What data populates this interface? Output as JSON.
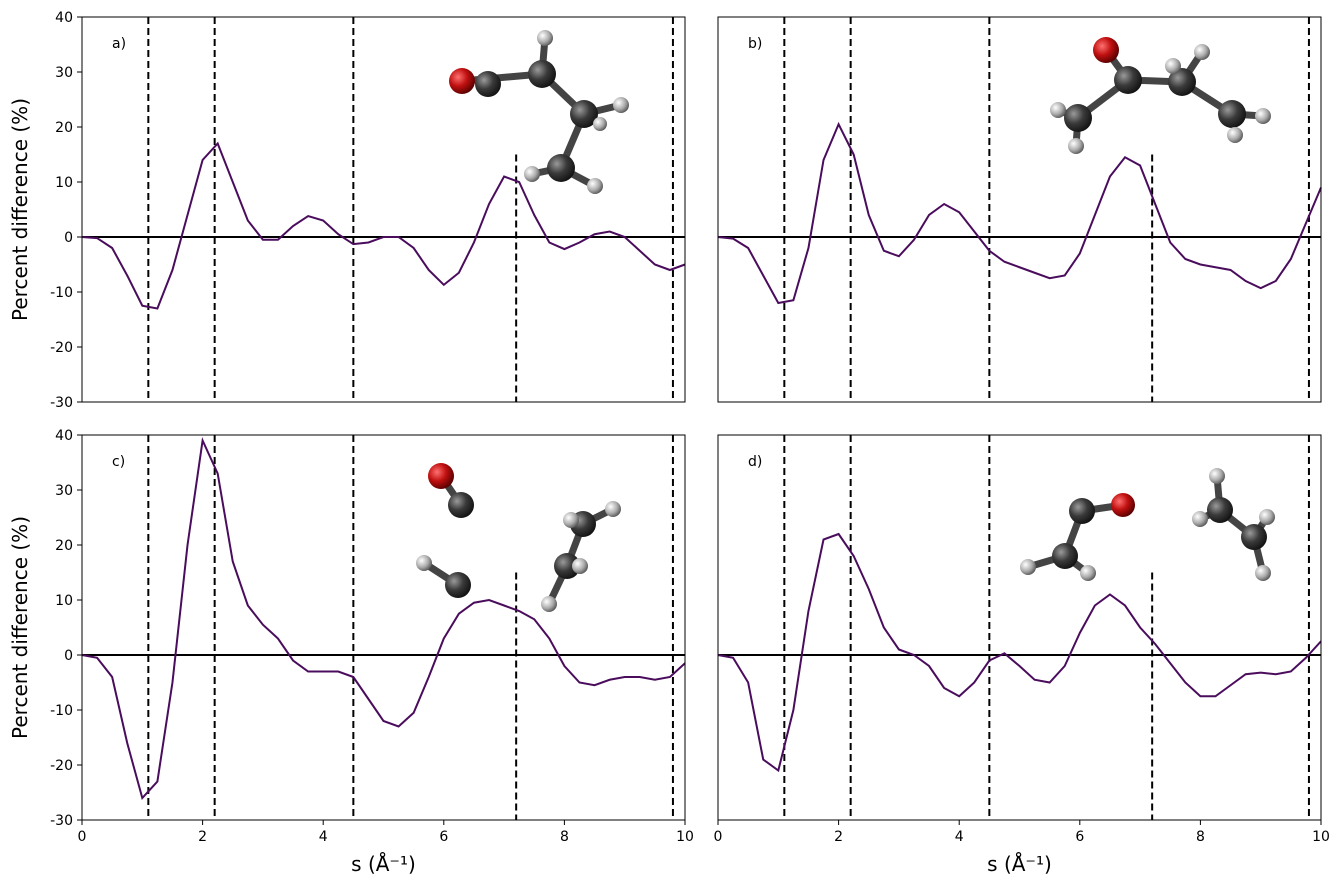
{
  "chart_data": [
    {
      "type": "line",
      "panel_label": "a)",
      "ylabel": "Percent difference (%)",
      "x": [
        0,
        0.25,
        0.5,
        0.75,
        1,
        1.25,
        1.5,
        1.75,
        2,
        2.25,
        2.5,
        2.75,
        3,
        3.25,
        3.5,
        3.75,
        4,
        4.25,
        4.5,
        4.75,
        5,
        5.25,
        5.5,
        5.75,
        6,
        6.25,
        6.5,
        6.75,
        7,
        7.25,
        7.5,
        7.75,
        8,
        8.25,
        8.5,
        8.75,
        9,
        9.25,
        9.5,
        9.75,
        10
      ],
      "values": [
        0,
        -0.2,
        -2,
        -7,
        -12.5,
        -13,
        -6,
        4,
        14,
        17,
        10,
        3,
        -0.5,
        -0.5,
        2,
        3.8,
        3,
        0.5,
        -1.3,
        -1,
        0,
        0,
        -2,
        -6,
        -8.7,
        -6.5,
        -1,
        6,
        11,
        10,
        4,
        -1,
        -2.2,
        -1,
        0.5,
        1,
        0,
        -2.5,
        -5,
        -6,
        -5
      ],
      "color": "#4a0c5c",
      "xlim": [
        0,
        10
      ],
      "ylim": [
        -30,
        40
      ],
      "yticks": [
        -30,
        -20,
        -10,
        0,
        10,
        20,
        30,
        40
      ],
      "hline": 0,
      "vlines": [
        1.1,
        2.2,
        4.5,
        7.2,
        9.8
      ],
      "vline_tops": [
        null,
        null,
        null,
        15,
        null
      ]
    },
    {
      "type": "line",
      "panel_label": "b)",
      "x": [
        0,
        0.25,
        0.5,
        0.75,
        1,
        1.25,
        1.5,
        1.75,
        2,
        2.25,
        2.5,
        2.75,
        3,
        3.25,
        3.5,
        3.75,
        4,
        4.25,
        4.5,
        4.75,
        5,
        5.25,
        5.5,
        5.75,
        6,
        6.25,
        6.5,
        6.75,
        7,
        7.25,
        7.5,
        7.75,
        8,
        8.25,
        8.5,
        8.75,
        9,
        9.25,
        9.5,
        9.75,
        10
      ],
      "values": [
        0,
        -0.3,
        -2,
        -7,
        -12,
        -11.5,
        -2,
        14,
        20.5,
        15,
        4,
        -2.5,
        -3.5,
        -0.5,
        4,
        6,
        4.5,
        1,
        -2.5,
        -4.5,
        -5.5,
        -6.5,
        -7.5,
        -7,
        -3,
        4,
        11,
        14.5,
        13,
        6,
        -1,
        -4,
        -5,
        -5.5,
        -6,
        -8,
        -9.3,
        -8,
        -4,
        2.5,
        9
      ],
      "color": "#4a0c5c",
      "xlim": [
        0,
        10
      ],
      "ylim": [
        -30,
        40
      ],
      "hline": 0,
      "vlines": [
        1.1,
        2.2,
        4.5,
        7.2,
        9.8
      ],
      "vline_tops": [
        null,
        null,
        null,
        15,
        null
      ]
    },
    {
      "type": "line",
      "panel_label": "c)",
      "ylabel": "Percent difference (%)",
      "xlabel": "s (Å⁻¹)",
      "x": [
        0,
        0.25,
        0.5,
        0.75,
        1,
        1.25,
        1.5,
        1.75,
        2,
        2.25,
        2.5,
        2.75,
        3,
        3.25,
        3.5,
        3.75,
        4,
        4.25,
        4.5,
        4.75,
        5,
        5.25,
        5.5,
        5.75,
        6,
        6.25,
        6.5,
        6.75,
        7,
        7.25,
        7.5,
        7.75,
        8,
        8.25,
        8.5,
        8.75,
        9,
        9.25,
        9.5,
        9.75,
        10
      ],
      "values": [
        0,
        -0.5,
        -4,
        -16,
        -26,
        -23,
        -5,
        20,
        39,
        33,
        17,
        9,
        5.5,
        3,
        -1,
        -3,
        -3,
        -3,
        -4,
        -8,
        -12,
        -13,
        -10.5,
        -4,
        3,
        7.5,
        9.5,
        10,
        9,
        8,
        6.5,
        3,
        -2,
        -5,
        -5.5,
        -4.5,
        -4,
        -4,
        -4.5,
        -4,
        -1.5
      ],
      "color": "#4a0c5c",
      "xlim": [
        0,
        10
      ],
      "ylim": [
        -30,
        40
      ],
      "xticks": [
        0,
        2,
        4,
        6,
        8,
        10
      ],
      "yticks": [
        -30,
        -20,
        -10,
        0,
        10,
        20,
        30,
        40
      ],
      "hline": 0,
      "vlines": [
        1.1,
        2.2,
        4.5,
        7.2,
        9.8
      ],
      "vline_tops": [
        null,
        null,
        null,
        15,
        null
      ]
    },
    {
      "type": "line",
      "panel_label": "d)",
      "xlabel": "s (Å⁻¹)",
      "x": [
        0,
        0.25,
        0.5,
        0.75,
        1,
        1.25,
        1.5,
        1.75,
        2,
        2.25,
        2.5,
        2.75,
        3,
        3.25,
        3.5,
        3.75,
        4,
        4.25,
        4.5,
        4.75,
        5,
        5.25,
        5.5,
        5.75,
        6,
        6.25,
        6.5,
        6.75,
        7,
        7.25,
        7.5,
        7.75,
        8,
        8.25,
        8.5,
        8.75,
        9,
        9.25,
        9.5,
        9.75,
        10
      ],
      "values": [
        0,
        -0.5,
        -5,
        -19,
        -21,
        -10,
        8,
        21,
        22,
        18,
        12,
        5,
        1,
        0,
        -2,
        -6,
        -7.5,
        -5,
        -1,
        0.3,
        -2,
        -4.5,
        -5,
        -2,
        4,
        9,
        11,
        9,
        5,
        2,
        -1.5,
        -5,
        -7.5,
        -7.5,
        -5.5,
        -3.5,
        -3.2,
        -3.5,
        -3,
        -0.5,
        2.5
      ],
      "color": "#4a0c5c",
      "xlim": [
        0,
        10
      ],
      "ylim": [
        -30,
        40
      ],
      "xticks": [
        0,
        2,
        4,
        6,
        8,
        10
      ],
      "hline": 0,
      "vlines": [
        1.1,
        2.2,
        4.5,
        7.2,
        9.8
      ],
      "vline_tops": [
        null,
        null,
        null,
        15,
        null
      ]
    }
  ]
}
